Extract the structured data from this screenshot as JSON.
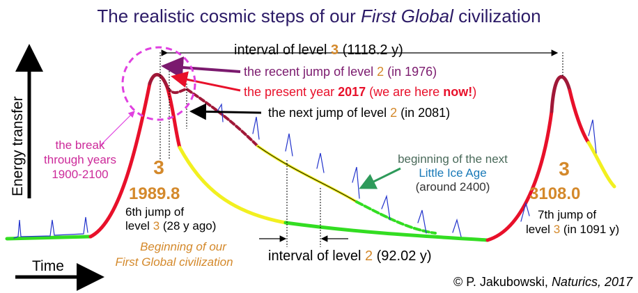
{
  "title": [
    "The realistic cosmic steps of our ",
    "First Global",
    " civilization"
  ],
  "axes": {
    "y_label": "Energy transfer",
    "x_label": "Time"
  },
  "annotations": {
    "interval_level3": [
      "interval of level ",
      "3",
      " (1118.2 y)"
    ],
    "recent_jump": [
      "the recent jump of level ",
      "2",
      " (in 1976)"
    ],
    "present_year": [
      "the present year ",
      "2017",
      " (we are here ",
      "now!",
      ")"
    ],
    "next_jump": [
      "the next jump of level ",
      "2",
      " (in 2081)"
    ],
    "break": [
      "the break",
      "through years",
      "1900-2100"
    ],
    "left_peak": {
      "level": "3",
      "year": "1989.8",
      "line1": "6th jump of",
      "line2": [
        "level ",
        "3",
        " (28 y ago)"
      ]
    },
    "beginning": [
      "Beginning of our",
      "First Global civilization"
    ],
    "ice_age": [
      "beginning of the next",
      "Little Ice Age",
      "(around 2400)"
    ],
    "right_peak": {
      "level": "3",
      "year": "3108.0",
      "line1": "7th jump of",
      "line2": [
        "level ",
        "3",
        " (in 1091 y)"
      ]
    },
    "interval_level2": [
      "interval of level ",
      "2",
      " (92.02 y)"
    ]
  },
  "credit": [
    "© P. Jakubowski, ",
    "Naturics, 2017"
  ]
}
